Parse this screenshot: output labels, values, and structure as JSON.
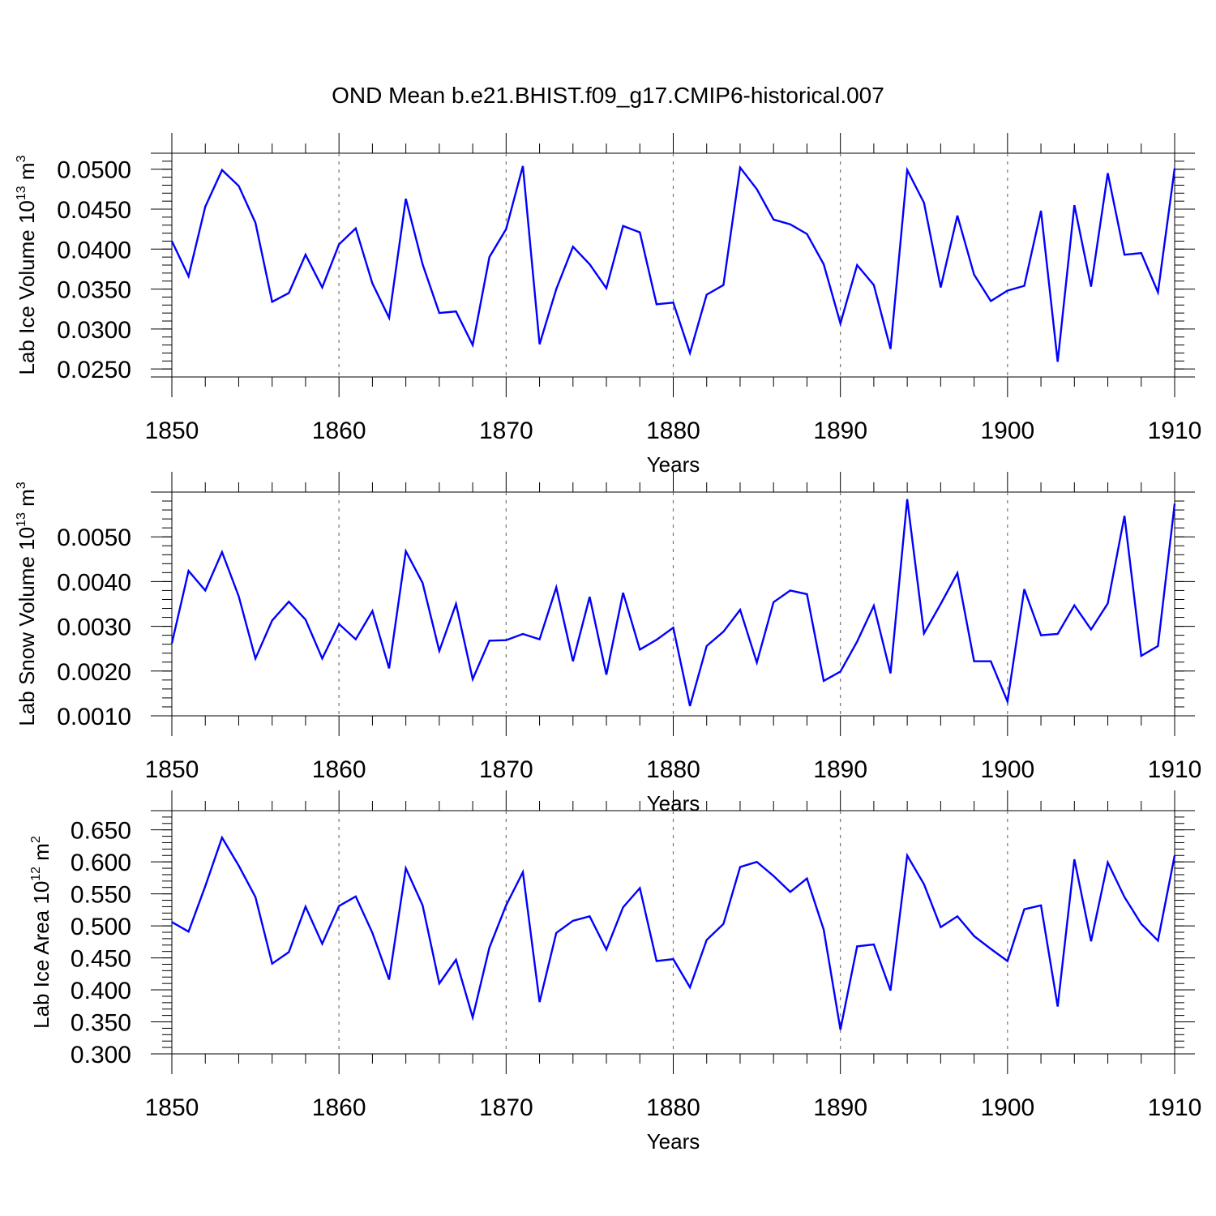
{
  "title": "OND Mean b.e21.BHIST.f09_g17.CMIP6-historical.007",
  "chart_data": [
    {
      "type": "line",
      "xlabel": "Years",
      "ylabel": {
        "main": "Lab Ice Volume 10",
        "exponent": "13",
        "unit": " m",
        "unit_exponent": "3"
      },
      "xlim": [
        1850,
        1910
      ],
      "ylim": [
        0.024,
        0.052
      ],
      "xticks": [
        1850,
        1860,
        1870,
        1880,
        1890,
        1900,
        1910
      ],
      "xtick_labels": [
        "1850",
        "1860",
        "1870",
        "1880",
        "1890",
        "1900",
        "1910"
      ],
      "yticks": [
        0.025,
        0.03,
        0.035,
        0.04,
        0.045,
        0.05
      ],
      "ytick_labels": [
        "0.0250",
        "0.0300",
        "0.0350",
        "0.0400",
        "0.0450",
        "0.0500"
      ],
      "y_minor_step": 0.001,
      "grid_x": true,
      "series": [
        {
          "name": "Lab Ice Volume",
          "color": "#0000ff",
          "x_start": 1850,
          "values": [
            0.041,
            0.0366,
            0.0453,
            0.0499,
            0.0479,
            0.0433,
            0.0334,
            0.0345,
            0.0393,
            0.0352,
            0.0406,
            0.0426,
            0.0357,
            0.0314,
            0.0463,
            0.0381,
            0.032,
            0.0322,
            0.028,
            0.039,
            0.0425,
            0.0504,
            0.0281,
            0.035,
            0.0403,
            0.0381,
            0.0351,
            0.0429,
            0.0421,
            0.0331,
            0.0333,
            0.027,
            0.0343,
            0.0355,
            0.0502,
            0.0475,
            0.0437,
            0.0431,
            0.0419,
            0.0381,
            0.0307,
            0.038,
            0.0355,
            0.0275,
            0.0499,
            0.0458,
            0.0352,
            0.0442,
            0.0368,
            0.0335,
            0.0348,
            0.0354,
            0.0448,
            0.0259,
            0.0455,
            0.0353,
            0.0495,
            0.0393,
            0.0395,
            0.0346,
            0.0501
          ]
        }
      ]
    },
    {
      "type": "line",
      "xlabel": "Years",
      "ylabel": {
        "main": "Lab Snow Volume 10",
        "exponent": "13",
        "unit": " m",
        "unit_exponent": "3"
      },
      "xlim": [
        1850,
        1910
      ],
      "ylim": [
        0.001,
        0.006
      ],
      "xticks": [
        1850,
        1860,
        1870,
        1880,
        1890,
        1900,
        1910
      ],
      "xtick_labels": [
        "1850",
        "1860",
        "1870",
        "1880",
        "1890",
        "1900",
        "1910"
      ],
      "yticks": [
        0.001,
        0.002,
        0.003,
        0.004,
        0.005
      ],
      "ytick_labels": [
        "0.0010",
        "0.0020",
        "0.0030",
        "0.0040",
        "0.0050"
      ],
      "y_minor_step": 0.0002,
      "grid_x": true,
      "series": [
        {
          "name": "Lab Snow Volume",
          "color": "#0000ff",
          "x_start": 1850,
          "values": [
            0.00262,
            0.00424,
            0.0038,
            0.00466,
            0.00367,
            0.00228,
            0.00313,
            0.00355,
            0.00315,
            0.00228,
            0.00305,
            0.00271,
            0.00334,
            0.00206,
            0.00468,
            0.00397,
            0.00245,
            0.0035,
            0.00182,
            0.00268,
            0.00269,
            0.00283,
            0.00271,
            0.00387,
            0.00222,
            0.00366,
            0.00192,
            0.00375,
            0.00248,
            0.0027,
            0.00297,
            0.00122,
            0.00256,
            0.00288,
            0.00337,
            0.00219,
            0.00354,
            0.0038,
            0.00372,
            0.00178,
            0.00199,
            0.00266,
            0.00346,
            0.00195,
            0.00584,
            0.00284,
            0.0035,
            0.00419,
            0.00222,
            0.00222,
            0.00132,
            0.00383,
            0.0028,
            0.00283,
            0.00347,
            0.00293,
            0.00351,
            0.00547,
            0.00234,
            0.00256,
            0.00574
          ]
        }
      ]
    },
    {
      "type": "line",
      "xlabel": "Years",
      "ylabel": {
        "main": "Lab Ice Area 10",
        "exponent": "12",
        "unit": " m",
        "unit_exponent": "2"
      },
      "xlim": [
        1850,
        1910
      ],
      "ylim": [
        0.3,
        0.68
      ],
      "xticks": [
        1850,
        1860,
        1870,
        1880,
        1890,
        1900,
        1910
      ],
      "xtick_labels": [
        "1850",
        "1860",
        "1870",
        "1880",
        "1890",
        "1900",
        "1910"
      ],
      "yticks": [
        0.3,
        0.35,
        0.4,
        0.45,
        0.5,
        0.55,
        0.6,
        0.65
      ],
      "ytick_labels": [
        "0.300",
        "0.350",
        "0.400",
        "0.450",
        "0.500",
        "0.550",
        "0.600",
        "0.650"
      ],
      "y_minor_step": 0.01,
      "grid_x": true,
      "series": [
        {
          "name": "Lab Ice Area",
          "color": "#0000ff",
          "x_start": 1850,
          "values": [
            0.506,
            0.491,
            0.562,
            0.638,
            0.594,
            0.545,
            0.441,
            0.459,
            0.53,
            0.472,
            0.531,
            0.546,
            0.489,
            0.416,
            0.59,
            0.532,
            0.41,
            0.447,
            0.357,
            0.466,
            0.532,
            0.584,
            0.381,
            0.489,
            0.508,
            0.515,
            0.463,
            0.529,
            0.559,
            0.445,
            0.448,
            0.404,
            0.478,
            0.503,
            0.592,
            0.6,
            0.578,
            0.553,
            0.574,
            0.494,
            0.338,
            0.468,
            0.471,
            0.399,
            0.61,
            0.565,
            0.498,
            0.515,
            0.484,
            0.464,
            0.445,
            0.526,
            0.532,
            0.374,
            0.604,
            0.476,
            0.599,
            0.545,
            0.503,
            0.477,
            0.61
          ]
        }
      ]
    }
  ]
}
